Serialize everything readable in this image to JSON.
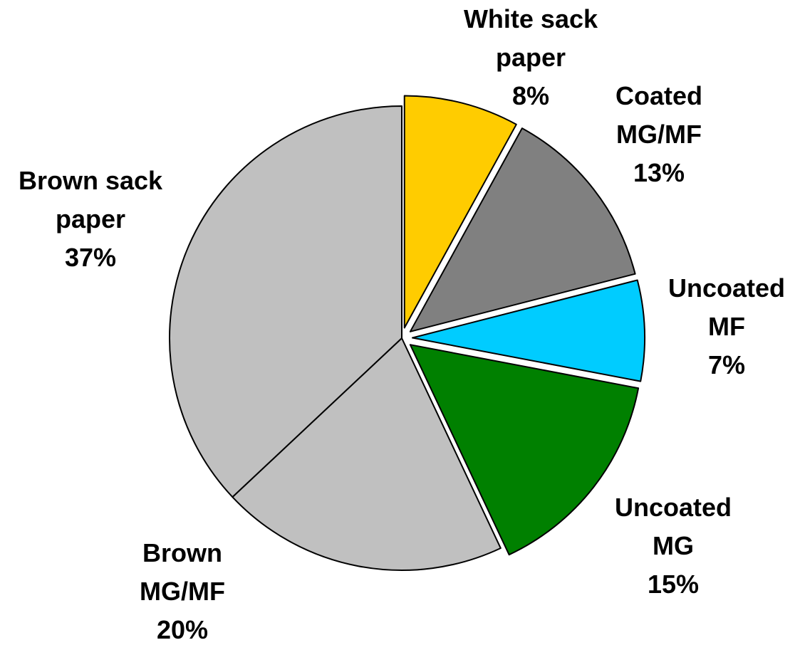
{
  "chart_data": {
    "type": "pie",
    "unit": "%",
    "slices": [
      {
        "label_lines": [
          "White sack",
          "paper"
        ],
        "value": 8,
        "value_label": "8%",
        "color": "#FFCC00",
        "exploded": true
      },
      {
        "label_lines": [
          "Coated",
          "MG/MF"
        ],
        "value": 13,
        "value_label": "13%",
        "color": "#808080",
        "exploded": true
      },
      {
        "label_lines": [
          "Uncoated",
          "MF"
        ],
        "value": 7,
        "value_label": "7%",
        "color": "#00CCFF",
        "exploded": true
      },
      {
        "label_lines": [
          "Uncoated",
          "MG"
        ],
        "value": 15,
        "value_label": "15%",
        "color": "#008000",
        "exploded": true
      },
      {
        "label_lines": [
          "Brown",
          "MG/MF"
        ],
        "value": 20,
        "value_label": "20%",
        "color": "#C0C0C0",
        "exploded": false
      },
      {
        "label_lines": [
          "Brown sack",
          "paper"
        ],
        "value": 37,
        "value_label": "37%",
        "color": "#C0C0C0",
        "exploded": false
      }
    ]
  }
}
